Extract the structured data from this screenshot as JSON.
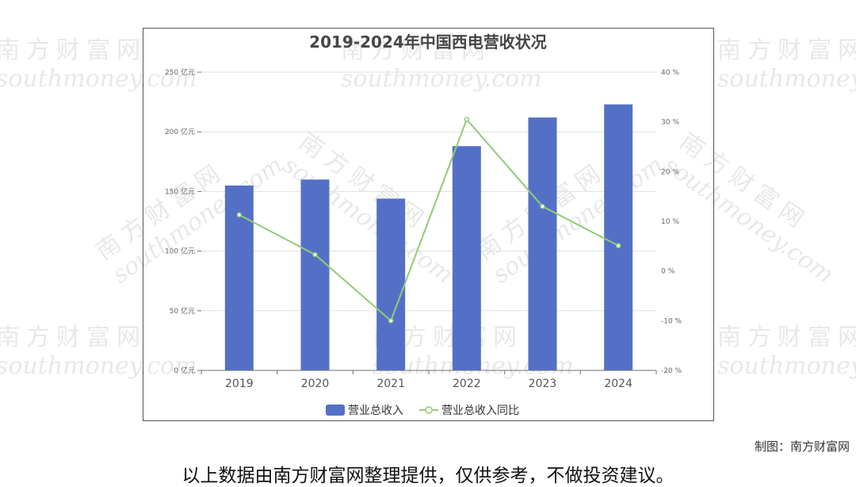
{
  "watermark": {
    "cn": "南方财富网",
    "en": "southmoney.com"
  },
  "credit": "制图：南方财富网",
  "disclaimer": "以上数据由南方财富网整理提供，仅供参考，不做投资建议。",
  "colors": {
    "bar": "#5470c6",
    "line": "#91cc75",
    "grid": "#e0e0e0",
    "axis": "#6e7079"
  },
  "chart_data": {
    "type": "bar",
    "title": "2019-2024年中国西电营收状况",
    "categories": [
      "2019",
      "2020",
      "2021",
      "2022",
      "2023",
      "2024"
    ],
    "series": [
      {
        "name": "营业总收入",
        "type": "bar",
        "axis": "left",
        "values": [
          155,
          160,
          144,
          188,
          212,
          223
        ]
      },
      {
        "name": "营业总收入同比",
        "type": "line",
        "axis": "right",
        "values": [
          11.3,
          3.3,
          -10,
          30.5,
          13,
          5.1
        ]
      }
    ],
    "y_left": {
      "min": 0,
      "max": 250,
      "step": 50,
      "ticks": [
        "0 亿元",
        "50 亿元",
        "100 亿元",
        "150 亿元",
        "200 亿元",
        "250 亿元"
      ]
    },
    "y_right": {
      "min": -20,
      "max": 40,
      "step": 10,
      "ticks": [
        "-20 %",
        "-10 %",
        "0 %",
        "10 %",
        "20 %",
        "30 %",
        "40 %"
      ]
    },
    "grid": true,
    "legend": "bottom-center"
  }
}
